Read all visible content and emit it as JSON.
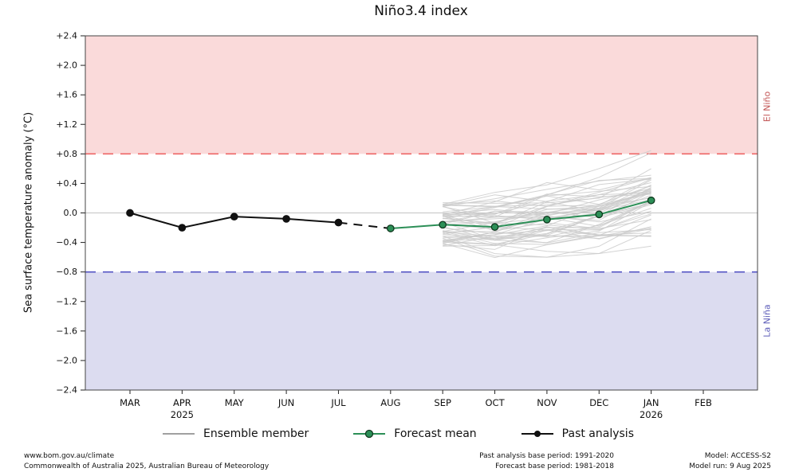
{
  "chart_data": {
    "type": "line",
    "title": "Niño3.4 index",
    "ylabel": "Sea surface temperature anomaly (°C)",
    "ylim": [
      -2.4,
      2.4
    ],
    "ytick_step": 0.4,
    "grid": "zero-line-only",
    "legend_position": "bottom",
    "categories": [
      {
        "label": "MAR"
      },
      {
        "label": "APR",
        "sub": "2025"
      },
      {
        "label": "MAY"
      },
      {
        "label": "JUN"
      },
      {
        "label": "JUL"
      },
      {
        "label": "AUG"
      },
      {
        "label": "SEP"
      },
      {
        "label": "OCT"
      },
      {
        "label": "NOV"
      },
      {
        "label": "DEC"
      },
      {
        "label": "JAN",
        "sub": "2026"
      },
      {
        "label": "FEB"
      }
    ],
    "zero_line": 0.0,
    "bands": [
      {
        "name": "el-nino",
        "label": "El Niño",
        "from": 0.8,
        "to": 2.4,
        "threshold": 0.8,
        "fill": "#fadada",
        "line_color": "#ee6666",
        "label_color": "#c05050"
      },
      {
        "name": "la-nina",
        "label": "La Niña",
        "from": -2.4,
        "to": -0.8,
        "threshold": -0.8,
        "fill": "#dcdcf0",
        "line_color": "#5555c5",
        "label_color": "#5b5bb8"
      }
    ],
    "series": [
      {
        "name": "Past analysis",
        "type": "line-marker",
        "color": "#111111",
        "x": [
          "MAR",
          "APR",
          "MAY",
          "JUN",
          "JUL"
        ],
        "values": [
          0.0,
          -0.2,
          -0.05,
          -0.08,
          -0.13
        ]
      },
      {
        "name": "Past to forecast connector",
        "type": "dashed",
        "color": "#111111",
        "x": [
          "JUL",
          "AUG"
        ],
        "values": [
          -0.13,
          -0.21
        ]
      },
      {
        "name": "Forecast mean",
        "type": "line-marker",
        "color": "#2c8f57",
        "marker_edge": "#10391f",
        "x": [
          "AUG",
          "SEP",
          "OCT",
          "NOV",
          "DEC",
          "JAN"
        ],
        "values": [
          -0.21,
          -0.16,
          -0.19,
          -0.09,
          -0.02,
          0.17
        ]
      }
    ],
    "ensemble": {
      "name": "Ensemble member",
      "count": 55,
      "color": "#cbcbcb",
      "x": [
        "SEP",
        "OCT",
        "NOV",
        "DEC",
        "JAN"
      ],
      "mean": [
        -0.16,
        -0.19,
        -0.09,
        -0.02,
        0.17
      ],
      "min": [
        -0.45,
        -0.65,
        -0.6,
        -0.55,
        -0.45
      ],
      "max": [
        0.35,
        0.45,
        0.55,
        0.78,
        1.1
      ]
    }
  },
  "legend": {
    "items": [
      {
        "label": "Ensemble member",
        "swatch": "gray-line"
      },
      {
        "label": "Forecast mean",
        "swatch": "green-line-circle"
      },
      {
        "label": "Past analysis",
        "swatch": "black-line-dot"
      }
    ]
  },
  "footer": {
    "left_line1": "www.bom.gov.au/climate",
    "left_line2": "Commonwealth of Australia 2025, Australian Bureau of Meteorology",
    "center_line1": "Past analysis base period: 1991-2020",
    "center_line2": "Forecast base period: 1981-2018",
    "right_line1": "Model: ACCESS-S2",
    "right_line2": "Model run: 9 Aug 2025"
  }
}
